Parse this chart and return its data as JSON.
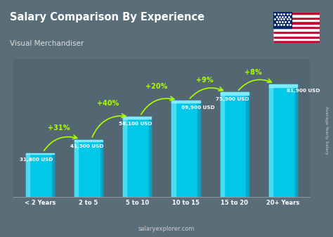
{
  "title": "Salary Comparison By Experience",
  "subtitle": "Visual Merchandiser",
  "categories": [
    "< 2 Years",
    "2 to 5",
    "5 to 10",
    "10 to 15",
    "15 to 20",
    "20+ Years"
  ],
  "values": [
    31800,
    41500,
    58100,
    69900,
    75900,
    81900
  ],
  "value_labels": [
    "31,800 USD",
    "41,500 USD",
    "58,100 USD",
    "69,900 USD",
    "75,900 USD",
    "81,900 USD"
  ],
  "pct_labels": [
    "+31%",
    "+40%",
    "+20%",
    "+9%",
    "+8%"
  ],
  "bar_color_main": "#00c8e8",
  "bar_color_light": "#55e0f5",
  "bar_color_dark": "#0099bb",
  "bar_color_top": "#88eeff",
  "pct_color": "#aaff00",
  "label_color": "#ffffff",
  "title_color": "#ffffff",
  "subtitle_color": "#dddddd",
  "bg_color": "#5a6e7a",
  "footer": "salaryexplorer.com",
  "side_label": "Average Yearly Salary",
  "ylim": [
    0,
    100000
  ]
}
